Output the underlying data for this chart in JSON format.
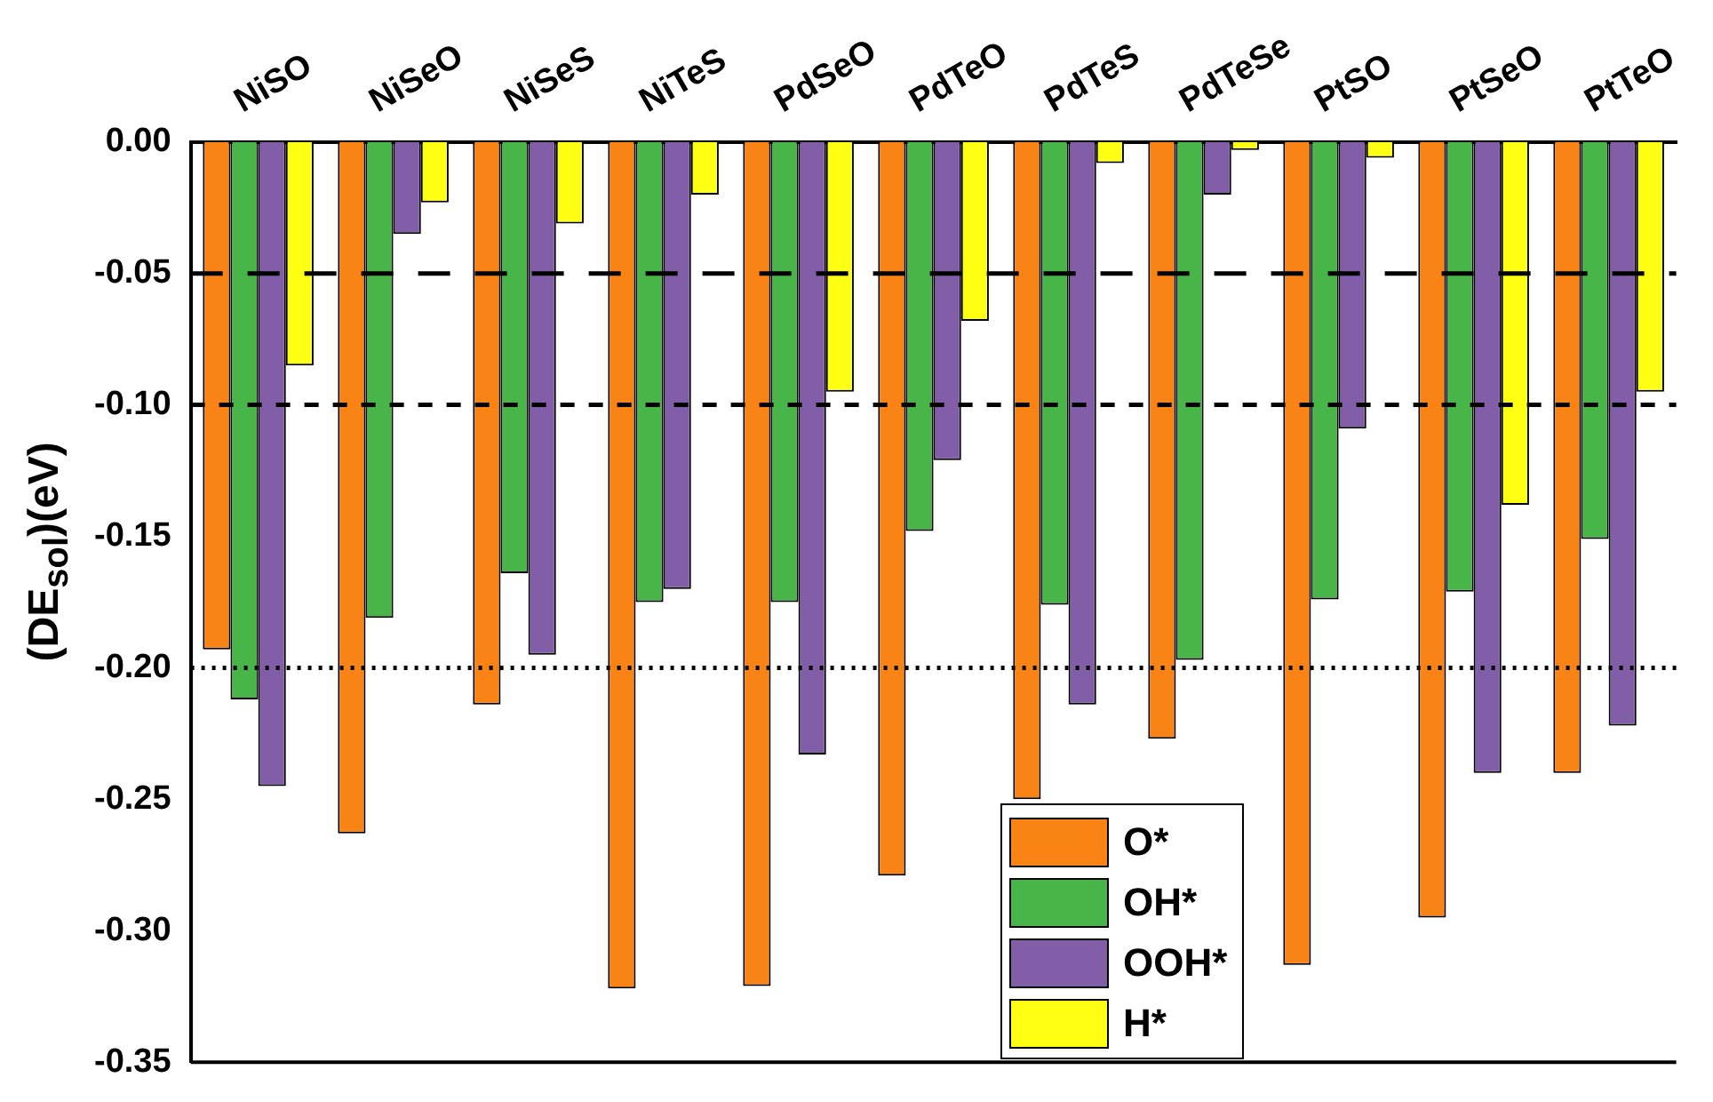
{
  "chart_data": {
    "type": "bar",
    "ylabel": "(DE$_{sol}$)(eV)",
    "categories": [
      "NiSO",
      "NiSeO",
      "NiSeS",
      "NiTeS",
      "PdSeO",
      "PdTeO",
      "PdTeS",
      "PdTeSe",
      "PtSO",
      "PtSeO",
      "PtTeO"
    ],
    "series": [
      {
        "name": "O*",
        "color": "#f98314",
        "values": [
          -0.193,
          -0.263,
          -0.214,
          -0.322,
          -0.321,
          -0.279,
          -0.25,
          -0.227,
          -0.313,
          -0.295,
          -0.24
        ]
      },
      {
        "name": "OH*",
        "color": "#48b548",
        "values": [
          -0.212,
          -0.181,
          -0.164,
          -0.175,
          -0.175,
          -0.148,
          -0.176,
          -0.197,
          -0.174,
          -0.171,
          -0.151
        ]
      },
      {
        "name": "OOH*",
        "color": "#825ea9",
        "values": [
          -0.245,
          -0.035,
          -0.195,
          -0.17,
          -0.233,
          -0.121,
          -0.214,
          -0.02,
          -0.109,
          -0.24,
          -0.222
        ]
      },
      {
        "name": "H*",
        "color": "#ffff14",
        "values": [
          -0.085,
          -0.023,
          -0.031,
          -0.02,
          -0.095,
          -0.068,
          -0.008,
          -0.003,
          -0.006,
          -0.138,
          -0.095
        ]
      }
    ],
    "ylim": [
      -0.35,
      0
    ],
    "yticks": [
      {
        "value": 0,
        "label": "0.00"
      },
      {
        "value": -0.05,
        "label": "-0.05"
      },
      {
        "value": -0.1,
        "label": "-0.10"
      },
      {
        "value": -0.15,
        "label": "-0.15"
      },
      {
        "value": -0.2,
        "label": "-0.20"
      },
      {
        "value": -0.25,
        "label": "-0.25"
      },
      {
        "value": -0.3,
        "label": "-0.30"
      },
      {
        "value": -0.35,
        "label": "-0.35"
      }
    ],
    "ref_lines": [
      {
        "axis": "y",
        "value": -0.05,
        "line_style": "dashed",
        "color": "#000000"
      },
      {
        "axis": "y",
        "value": -0.1,
        "line_style": "dashed",
        "color": "#000000"
      },
      {
        "axis": "y",
        "value": -0.2,
        "line_style": "dotted",
        "color": "#000000"
      }
    ],
    "grid": false,
    "legend": "bottom"
  }
}
